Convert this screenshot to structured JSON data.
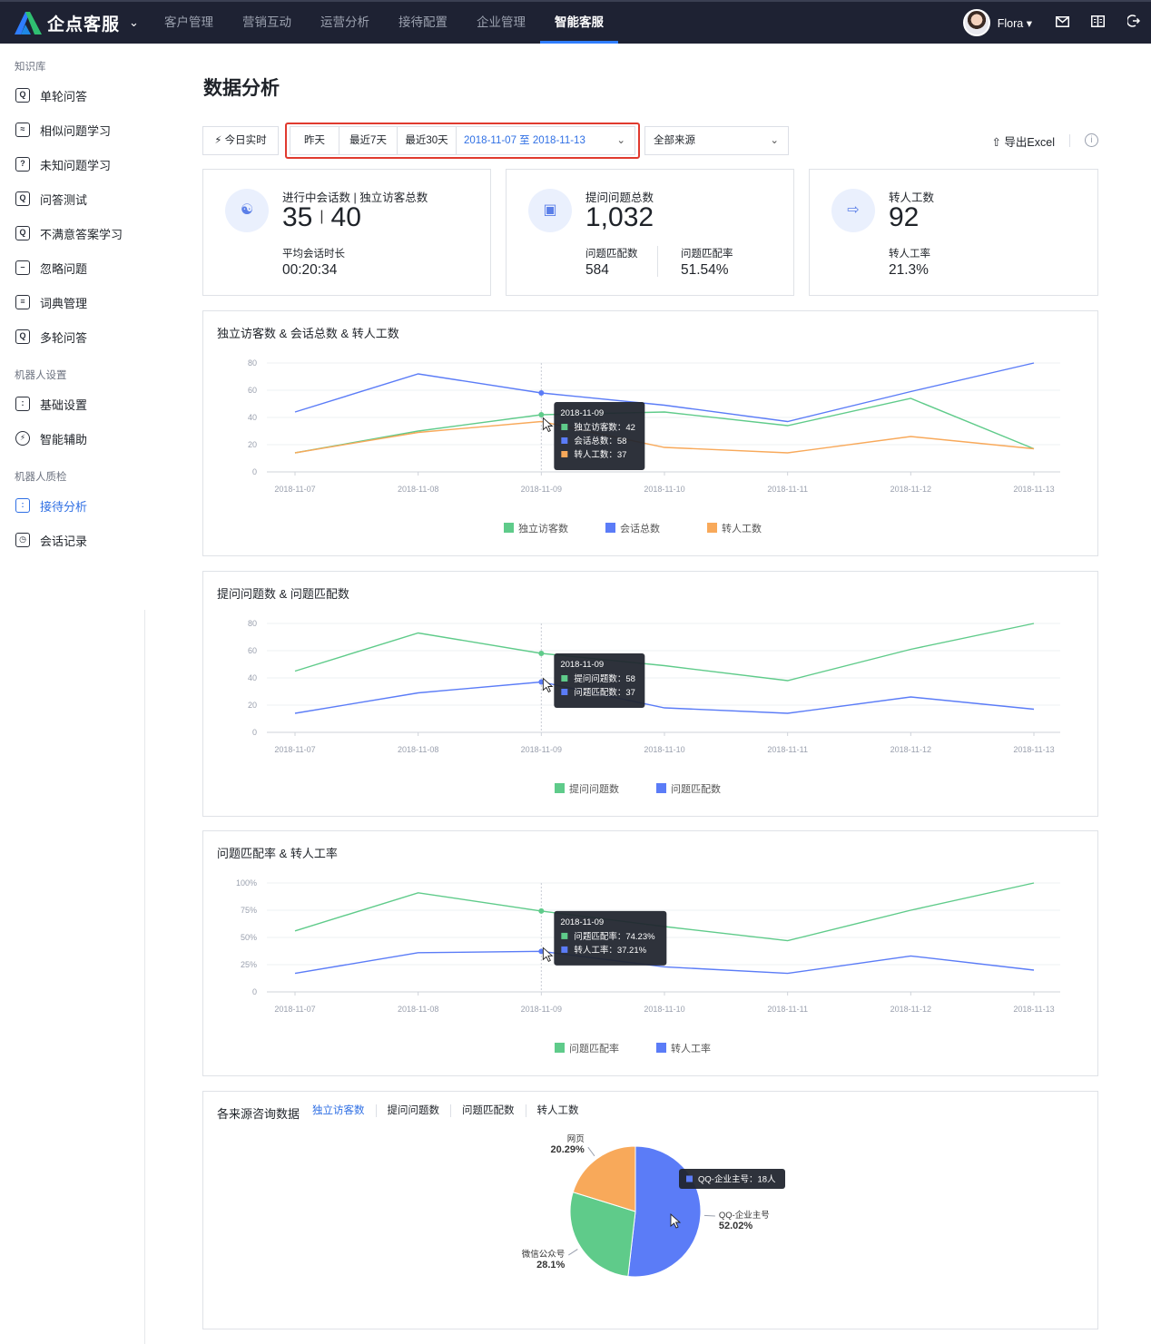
{
  "brand": {
    "name": "企点客服"
  },
  "nav": [
    {
      "label": "客户管理"
    },
    {
      "label": "营销互动"
    },
    {
      "label": "运营分析"
    },
    {
      "label": "接待配置"
    },
    {
      "label": "企业管理"
    },
    {
      "label": "智能客服",
      "active": true
    }
  ],
  "user": {
    "name": "Flora"
  },
  "sidebar": {
    "groups": [
      {
        "title": "知识库",
        "items": [
          {
            "label": "单轮问答",
            "icon": "qa-doc-icon"
          },
          {
            "label": "相似问题学习",
            "icon": "similar-icon"
          },
          {
            "label": "未知问题学习",
            "icon": "question-icon"
          },
          {
            "label": "问答测试",
            "icon": "test-icon"
          },
          {
            "label": "不满意答案学习",
            "icon": "dislike-icon"
          },
          {
            "label": "忽略问题",
            "icon": "ignore-icon"
          },
          {
            "label": "词典管理",
            "icon": "dictionary-icon"
          },
          {
            "label": "多轮问答",
            "icon": "multi-qa-icon"
          }
        ]
      },
      {
        "title": "机器人设置",
        "items": [
          {
            "label": "基础设置",
            "icon": "robot-icon"
          },
          {
            "label": "智能辅助",
            "icon": "assist-icon"
          }
        ]
      },
      {
        "title": "机器人质检",
        "items": [
          {
            "label": "接待分析",
            "icon": "analysis-icon",
            "active": true
          },
          {
            "label": "会话记录",
            "icon": "record-icon"
          }
        ]
      }
    ]
  },
  "page": {
    "title": "数据分析"
  },
  "filters": {
    "today": "今日实时",
    "yesterday": "昨天",
    "last7": "最近7天",
    "last30": "最近30天",
    "range": "2018-11-07 至 2018-11-13",
    "source": "全部来源",
    "export": "导出Excel"
  },
  "stats": {
    "sessions": {
      "label": "进行中会话数 | 独立访客总数",
      "value_a": "35",
      "value_b": "40",
      "sub_label": "平均会话时长",
      "sub_value": "00:20:34"
    },
    "questions": {
      "label": "提问问题总数",
      "value": "1,032",
      "sub_label_a": "问题匹配数",
      "sub_value_a": "584",
      "sub_label_b": "问题匹配率",
      "sub_value_b": "51.54%"
    },
    "transfer": {
      "label": "转人工数",
      "value": "92",
      "sub_label": "转人工率",
      "sub_value": "21.3%"
    }
  },
  "colors": {
    "green": "#5fcb8a",
    "blue": "#5b7cf7",
    "orange": "#f8a95a",
    "accent": "#2f6fe4"
  },
  "pie_panel": {
    "title": "各来源咨询数据",
    "tabs": [
      "独立访客数",
      "提问问题数",
      "问题匹配数",
      "转人工数"
    ]
  },
  "chart_data": [
    {
      "type": "line",
      "title": "独立访客数 & 会话总数 & 转人工数",
      "x": [
        "2018-11-07",
        "2018-11-08",
        "2018-11-09",
        "2018-11-10",
        "2018-11-11",
        "2018-11-12",
        "2018-11-13"
      ],
      "ylim": [
        0,
        80
      ],
      "yticks": [
        0,
        20,
        40,
        60,
        80
      ],
      "grid": true,
      "legend": "bottom",
      "series": [
        {
          "name": "独立访客数",
          "color": "#5fcb8a",
          "values": [
            14,
            30,
            42,
            44,
            34,
            54,
            17
          ]
        },
        {
          "name": "会话总数",
          "color": "#5b7cf7",
          "values": [
            44,
            72,
            58,
            49,
            37,
            59,
            80
          ]
        },
        {
          "name": "转人工数",
          "color": "#f8a95a",
          "values": [
            14,
            29,
            37,
            18,
            14,
            26,
            17
          ]
        }
      ],
      "tooltip": {
        "index": 2,
        "title": "2018-11-09",
        "rows": [
          {
            "label": "独立访客数",
            "value": "42"
          },
          {
            "label": "会话总数",
            "value": "58"
          },
          {
            "label": "转人工数",
            "value": "37"
          }
        ]
      }
    },
    {
      "type": "line",
      "title": "提问问题数 & 问题匹配数",
      "x": [
        "2018-11-07",
        "2018-11-08",
        "2018-11-09",
        "2018-11-10",
        "2018-11-11",
        "2018-11-12",
        "2018-11-13"
      ],
      "ylim": [
        0,
        80
      ],
      "yticks": [
        0,
        20,
        40,
        60,
        80
      ],
      "grid": true,
      "legend": "bottom",
      "series": [
        {
          "name": "提问问题数",
          "color": "#5fcb8a",
          "values": [
            45,
            73,
            58,
            49,
            38,
            61,
            80
          ]
        },
        {
          "name": "问题匹配数",
          "color": "#5b7cf7",
          "values": [
            14,
            29,
            37,
            18,
            14,
            26,
            17
          ]
        }
      ],
      "tooltip": {
        "index": 2,
        "title": "2018-11-09",
        "rows": [
          {
            "label": "提问问题数",
            "value": "58"
          },
          {
            "label": "问题匹配数",
            "value": "37"
          }
        ]
      }
    },
    {
      "type": "line",
      "title": "问题匹配率 & 转人工率",
      "x": [
        "2018-11-07",
        "2018-11-08",
        "2018-11-09",
        "2018-11-10",
        "2018-11-11",
        "2018-11-12",
        "2018-11-13"
      ],
      "ylim": [
        0,
        100
      ],
      "yticks": [
        0,
        25,
        50,
        75,
        100
      ],
      "ytick_labels": [
        "0",
        "25%",
        "50%",
        "75%",
        "100%"
      ],
      "grid": true,
      "legend": "bottom",
      "series": [
        {
          "name": "问题匹配率",
          "color": "#5fcb8a",
          "values": [
            56,
            91,
            74.23,
            60,
            47,
            75,
            100
          ]
        },
        {
          "name": "转人工率",
          "color": "#5b7cf7",
          "values": [
            17,
            36,
            37.21,
            23,
            17,
            33,
            20
          ]
        }
      ],
      "tooltip": {
        "index": 2,
        "title": "2018-11-09",
        "rows": [
          {
            "label": "问题匹配率",
            "value": "74.23%"
          },
          {
            "label": "转人工率",
            "value": "37.21%"
          }
        ]
      }
    },
    {
      "type": "pie",
      "slices": [
        {
          "label": "QQ-企业主号",
          "value": 52.02,
          "pct": "52.02%",
          "color": "#5b7cf7"
        },
        {
          "label": "微信公众号",
          "value": 28.1,
          "pct": "28.1%",
          "color": "#5fcb8a"
        },
        {
          "label": "网页",
          "value": 20.29,
          "pct": "20.29%",
          "color": "#f8a95a"
        }
      ],
      "tooltip": {
        "label": "QQ-企业主号",
        "value": "18人"
      }
    }
  ]
}
